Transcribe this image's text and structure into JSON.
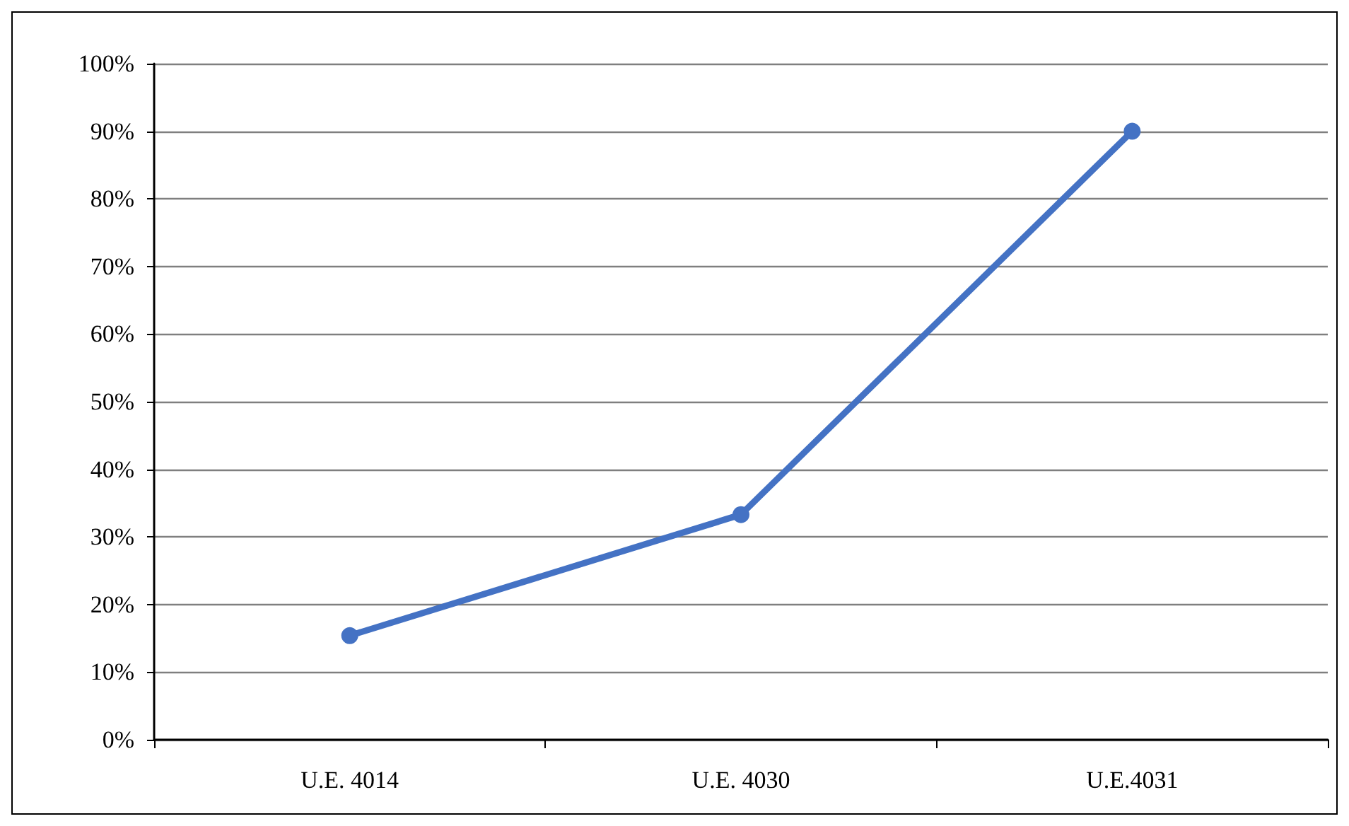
{
  "chart_data": {
    "type": "line",
    "categories": [
      "U.E. 4014",
      "U.E. 4030",
      "U.E.4031"
    ],
    "series": [
      {
        "color": "#4472c4",
        "values": [
          15.4,
          33.3,
          90
        ]
      }
    ],
    "ylim": [
      0,
      100
    ],
    "yticks": [
      {
        "value": 0,
        "label": "0%"
      },
      {
        "value": 10,
        "label": "10%"
      },
      {
        "value": 20,
        "label": "20%"
      },
      {
        "value": 30,
        "label": "30%"
      },
      {
        "value": 40,
        "label": "40%"
      },
      {
        "value": 50,
        "label": "50%"
      },
      {
        "value": 60,
        "label": "60%"
      },
      {
        "value": 70,
        "label": "70%"
      },
      {
        "value": 80,
        "label": "80%"
      },
      {
        "value": 90,
        "label": "90%"
      },
      {
        "value": 100,
        "label": "100%"
      }
    ],
    "grid": "y",
    "marker": "circle",
    "line_style": "solid"
  }
}
